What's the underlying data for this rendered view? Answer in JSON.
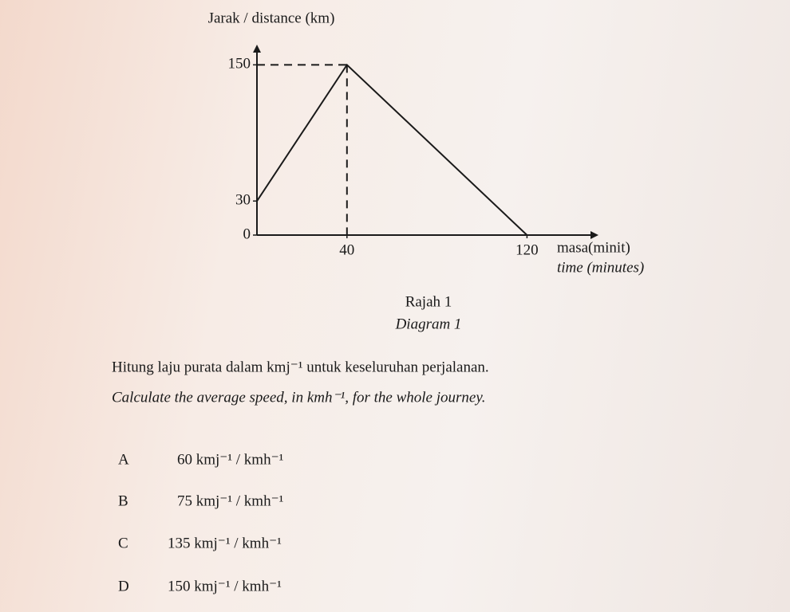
{
  "chart_data": {
    "type": "line",
    "y_label": "Jarak / distance (km)",
    "x_label": [
      "masa(minit)",
      "time (minutes)"
    ],
    "x": [
      0,
      40,
      120
    ],
    "values": [
      30,
      150,
      0
    ],
    "color": "#1a1a1a",
    "xlim": [
      0,
      150
    ],
    "ylim": [
      0,
      165
    ],
    "xticks": [
      40,
      120
    ],
    "yticks": [
      0,
      30,
      150
    ],
    "guides": true
  },
  "caption": [
    "Rajah 1",
    "Diagram 1"
  ],
  "question": [
    "Hitung laju purata dalam kmj⁻¹ untuk keseluruhan perjalanan.",
    "Calculate the average speed, in kmh⁻¹, for the whole journey."
  ],
  "options": [
    [
      "A",
      "60 kmj⁻¹ / kmh⁻¹"
    ],
    [
      "B",
      "75 kmj⁻¹ / kmh⁻¹"
    ],
    [
      "C",
      "135 kmj⁻¹ / kmh⁻¹"
    ],
    [
      "D",
      "150 kmj⁻¹ / kmh⁻¹"
    ]
  ]
}
